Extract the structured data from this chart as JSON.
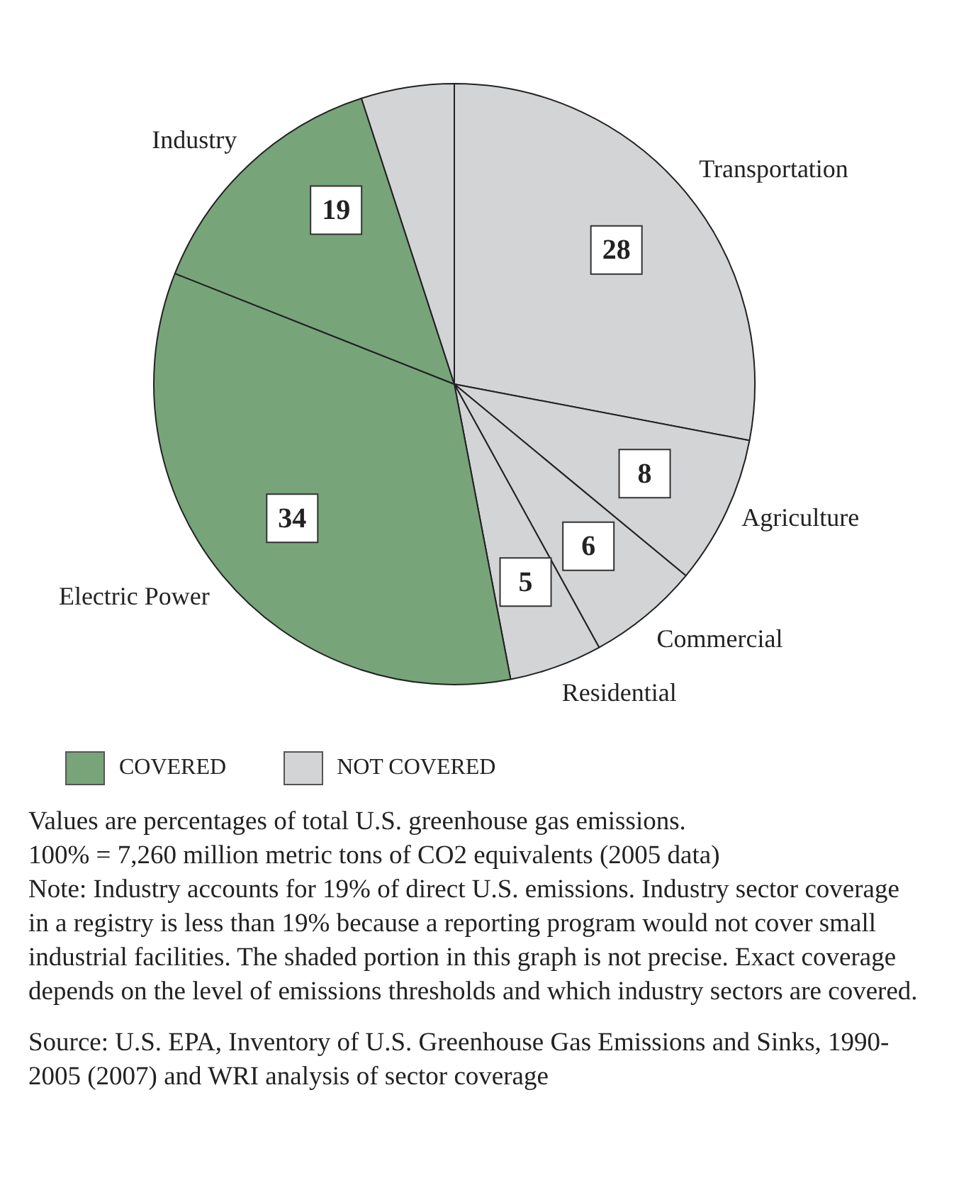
{
  "chart_data": {
    "type": "pie",
    "categories": [
      "Transportation",
      "Agriculture",
      "Commercial",
      "Residential",
      "Electric Power",
      "Industry",
      null
    ],
    "values": [
      28,
      8,
      6,
      5,
      34,
      14,
      5
    ],
    "colors": [
      "#d3d4d6",
      "#d3d4d6",
      "#d3d4d6",
      "#d3d4d6",
      "#78a47a",
      "#78a47a",
      "#d3d4d6"
    ],
    "value_labels": [
      "28",
      "8",
      "6",
      "5",
      "34",
      null,
      null
    ],
    "annotations": [
      {
        "text": "19",
        "x": "Industry"
      },
      {
        "text": "COVERED",
        "x": "Electric Power"
      },
      {
        "text": "NOT COVERED",
        "x": "Transportation"
      },
      "Values are percentages of total U.S. greenhouse gas emissions.",
      "100% = 7,260 million metric tons of CO2 equivalents (2005 data)",
      "Note: Industry accounts for 19% of direct U.S. emissions. Industry sector coverage in a registry is less than 19% because a reporting program would not cover small industrial facilities. The shaded portion in this graph is not precise. Exact coverage depends on the level of emissions thresholds and which industry sectors are covered.",
      "Source: U.S. EPA, Inventory of U.S. Greenhouse Gas Emissions and Sinks, 1990-2005 (2007) and WRI analysis of sector coverage"
    ]
  }
}
